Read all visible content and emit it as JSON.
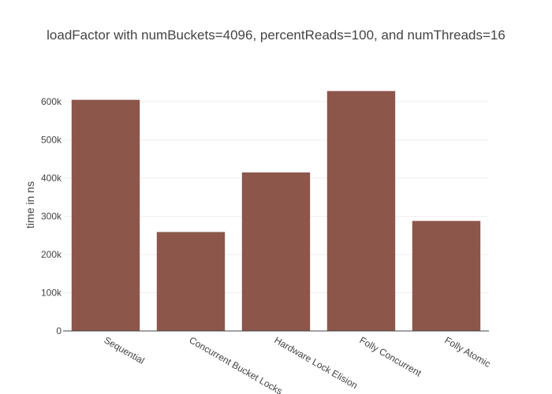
{
  "chart_data": {
    "type": "bar",
    "title": "loadFactor with numBuckets=4096, percentReads=100, and numThreads=16",
    "xlabel": "",
    "ylabel": "time in ns",
    "categories": [
      "Sequential",
      "Concurrent Bucket Locks",
      "Hardware Lock Elision",
      "Folly Concurrent",
      "Folly Atomic"
    ],
    "values": [
      605000,
      259000,
      415000,
      628000,
      288000
    ],
    "ylim": [
      0,
      660000
    ],
    "yticks": [
      0,
      100000,
      200000,
      300000,
      400000,
      500000,
      600000
    ],
    "ytick_labels": [
      "0",
      "100k",
      "200k",
      "300k",
      "400k",
      "500k",
      "600k"
    ],
    "bar_color": "#8c564b",
    "grid": true,
    "legend": "none"
  }
}
